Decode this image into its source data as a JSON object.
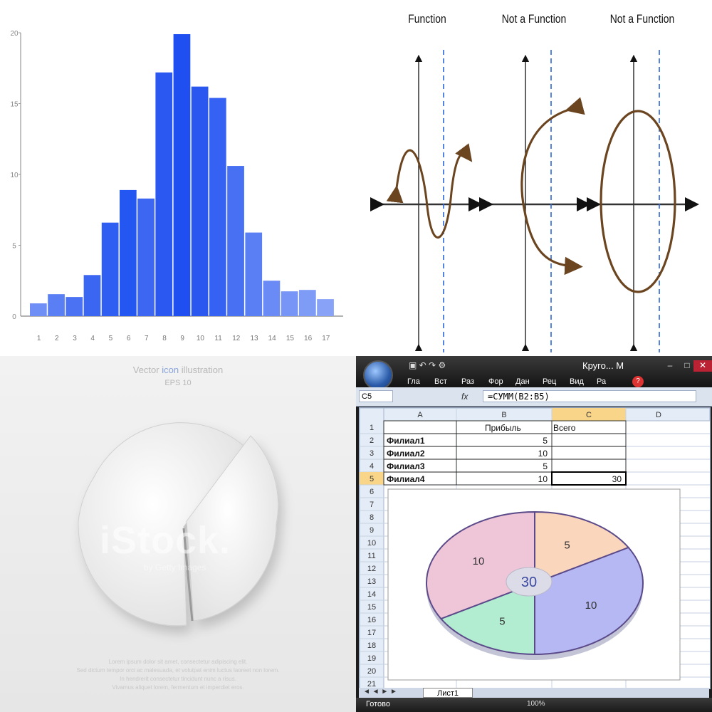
{
  "chart_data": [
    {
      "type": "bar",
      "categories": [
        "1",
        "2",
        "3",
        "4",
        "5",
        "6",
        "7",
        "8",
        "9",
        "10",
        "11",
        "12",
        "13",
        "14",
        "15",
        "16",
        "17"
      ],
      "values": [
        0.9,
        1.55,
        1.35,
        2.9,
        6.6,
        8.9,
        8.3,
        17.2,
        19.9,
        16.2,
        15.4,
        10.6,
        5.9,
        2.5,
        1.75,
        1.85,
        1.2
      ],
      "yticks": [
        "0",
        "5",
        "10",
        "15",
        "20"
      ],
      "ylim": [
        0,
        20
      ],
      "colors": [
        "#6f8ff6",
        "#5a7ff5",
        "#4a72f3",
        "#3b66f2",
        "#2f5ef3",
        "#2456f2",
        "#3d66f2",
        "#2a58f0",
        "#1f4ff0",
        "#2a57f0",
        "#3562f2",
        "#4770f3",
        "#5a7ff5",
        "#6a8bf5",
        "#7695f6",
        "#7e9bf6",
        "#87a2f7"
      ],
      "bar_color_hint": "blue gradient"
    },
    {
      "type": "pie",
      "values": [
        5,
        10,
        5,
        10
      ],
      "slice_labels": [
        "5",
        "10",
        "5",
        "10"
      ],
      "colors": [
        "#fad6bd",
        "#b5b8f2",
        "#b3edd1",
        "#eec6d8"
      ],
      "center_label": "30"
    }
  ],
  "function_diagrams": {
    "panels": [
      {
        "title": "Function"
      },
      {
        "title": "Not a Function"
      },
      {
        "title": "Not a Function"
      }
    ],
    "curve_color": "#6b4420",
    "vline_color": "#2a66d8"
  },
  "stock_illustration": {
    "title_pre": "Vector",
    "title_kw": "icon",
    "title_post": "illustration",
    "eps": "EPS 10",
    "watermark": "iStock.",
    "watermark_sub": "by Getty Images",
    "lorem_lines": [
      "Lorem ipsum dolor sit amet, consectetur adipiscing elit.",
      "Sed dictum tempor orci ac malesuada, et volutpat enim luctus laoreet non lorem.",
      "In hendrerit consectetur tincidunt nunc a risus.",
      "Vivamus aliquet lorem, fermentum et imperdiet eros."
    ]
  },
  "excel": {
    "title": "Круго... M",
    "menus": [
      "Гла",
      "Вст",
      "Раз",
      "Фор",
      "Дан",
      "Рец",
      "Вид",
      "Ра"
    ],
    "name_box": "C5",
    "fx": "fx",
    "formula": "=СУММ(B2:B5)",
    "columns": [
      "A",
      "B",
      "C",
      "D"
    ],
    "row_numbers": [
      "1",
      "2",
      "3",
      "4",
      "5",
      "6",
      "7",
      "8",
      "9",
      "10",
      "11",
      "12",
      "13",
      "14",
      "15",
      "16",
      "17",
      "18",
      "19",
      "20",
      "21"
    ],
    "header_row": {
      "b": "Прибыль",
      "c": "Всего"
    },
    "rows": [
      {
        "a": "Филиал1",
        "b": "5",
        "c": ""
      },
      {
        "a": "Филиал2",
        "b": "10",
        "c": ""
      },
      {
        "a": "Филиал3",
        "b": "5",
        "c": ""
      },
      {
        "a": "Филиал4",
        "b": "10",
        "c": "30"
      }
    ],
    "sheet_tab": "Лист1",
    "status": "Готово",
    "zoom": "100%"
  }
}
